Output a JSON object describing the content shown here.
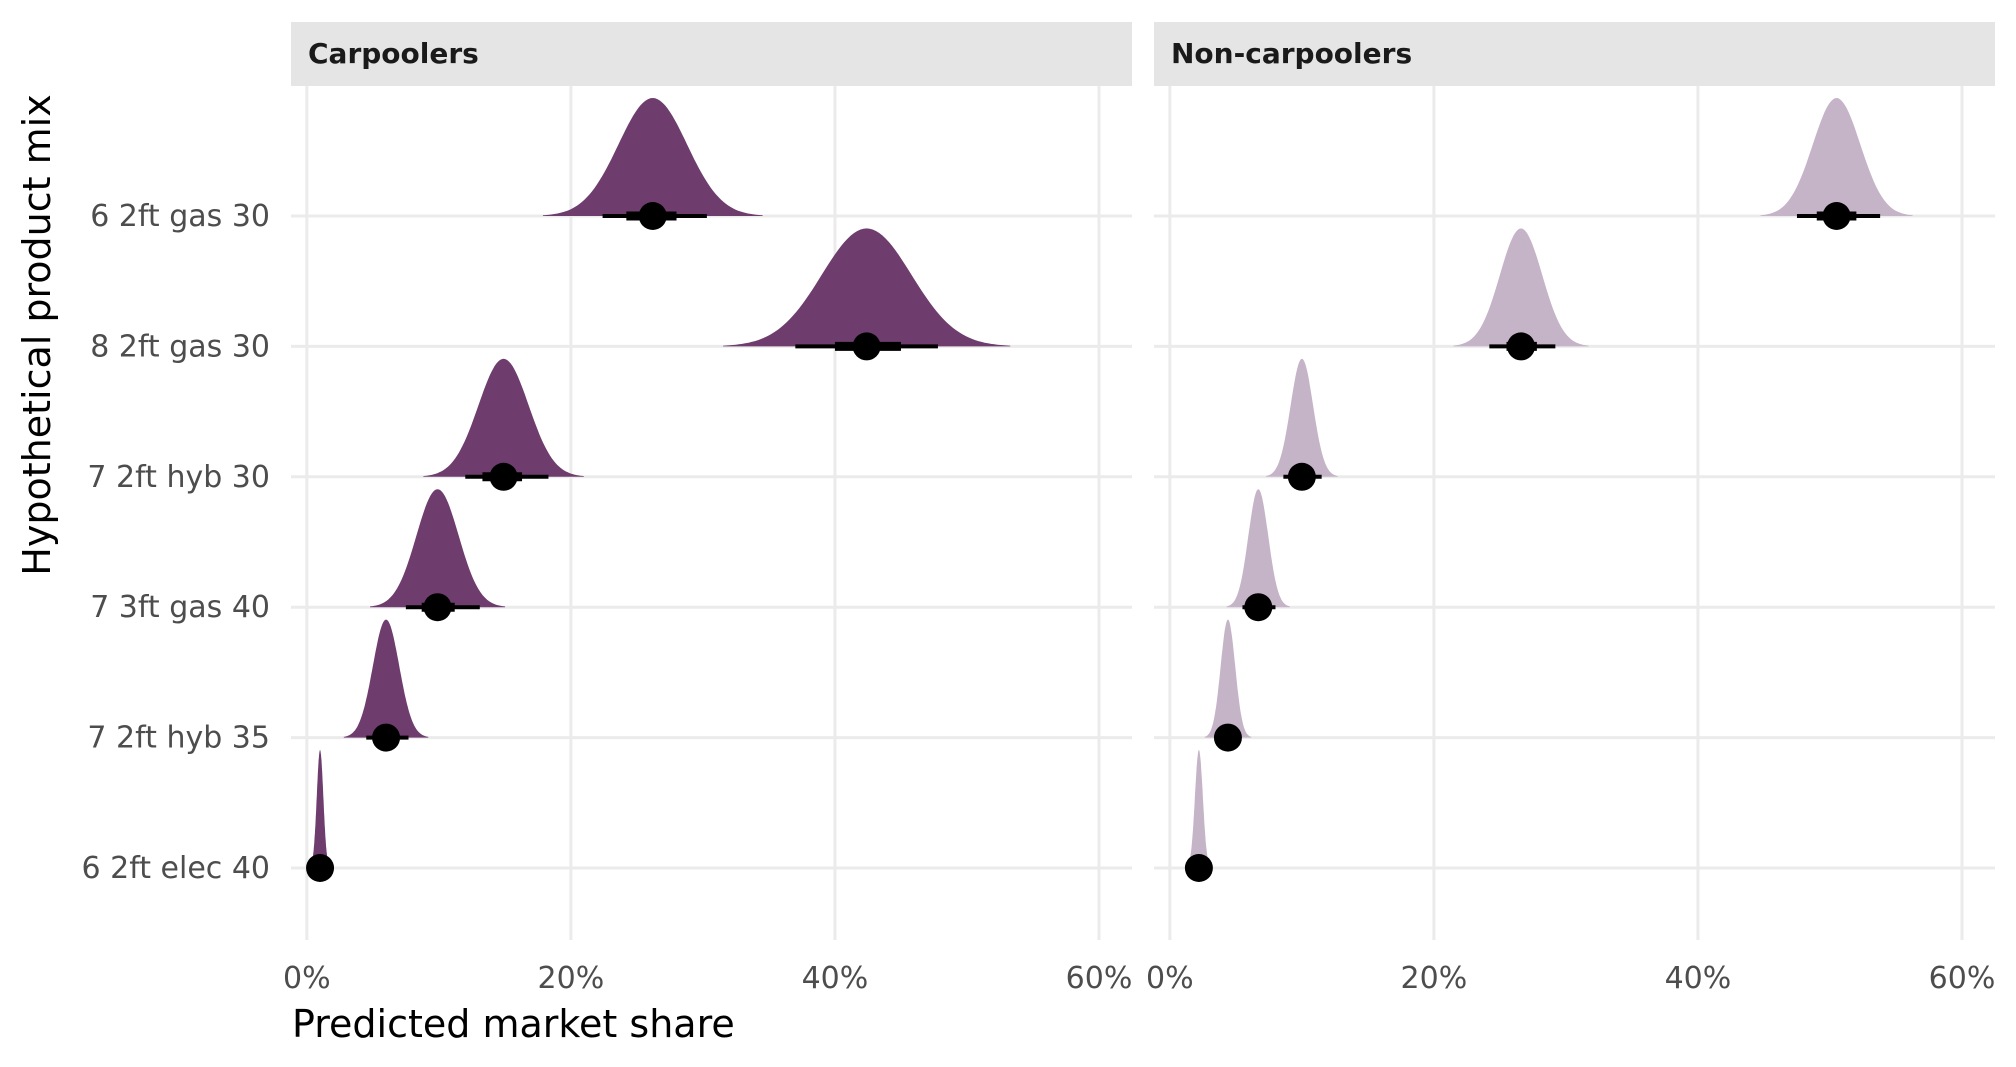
{
  "colors": {
    "carpoolers": "#6E3D6E",
    "non_carpoolers": "#C5B3C7",
    "point": "#000000",
    "grid": "#EBEBEB",
    "strip": "#E5E5E5"
  },
  "chart_data": {
    "type": "halfeye (density ridges with point + interval)",
    "xlabel": "Predicted market share",
    "ylabel": "Hypothetical product mix",
    "xlim": [
      -0.012,
      0.625
    ],
    "x_ticks": [
      0,
      0.2,
      0.4,
      0.6
    ],
    "x_tick_labels": [
      "0%",
      "20%",
      "40%",
      "60%"
    ],
    "categories": [
      "6 2ft gas 30",
      "8 2ft gas 30",
      "7 2ft hyb 30",
      "7 3ft gas 40",
      "7 2ft hyb 35",
      "6 2ft elec 40"
    ],
    "grid": true,
    "panels": [
      {
        "label": "Carpoolers",
        "color_key": "carpoolers",
        "rows": [
          {
            "category": "6 2ft gas 30",
            "mean": 0.262,
            "sd": 0.026,
            "ci66": [
              0.242,
              0.28
            ],
            "ci95": [
              0.224,
              0.303
            ]
          },
          {
            "category": "8 2ft gas 30",
            "mean": 0.424,
            "sd": 0.034,
            "ci66": [
              0.4,
              0.45
            ],
            "ci95": [
              0.37,
              0.478
            ]
          },
          {
            "category": "7 2ft hyb 30",
            "mean": 0.149,
            "sd": 0.019,
            "ci66": [
              0.133,
              0.163
            ],
            "ci95": [
              0.12,
              0.183
            ]
          },
          {
            "category": "7 3ft gas 40",
            "mean": 0.099,
            "sd": 0.016,
            "ci66": [
              0.087,
              0.112
            ],
            "ci95": [
              0.075,
              0.131
            ]
          },
          {
            "category": "7 2ft hyb 35",
            "mean": 0.06,
            "sd": 0.01,
            "ci66": [
              0.052,
              0.068
            ],
            "ci95": [
              0.045,
              0.077
            ]
          },
          {
            "category": "6 2ft elec 40",
            "mean": 0.01,
            "sd": 0.0025,
            "ci66": [
              0.008,
              0.012
            ],
            "ci95": [
              0.007,
              0.014
            ]
          }
        ]
      },
      {
        "label": "Non-carpoolers",
        "color_key": "non_carpoolers",
        "rows": [
          {
            "category": "6 2ft gas 30",
            "mean": 0.505,
            "sd": 0.018,
            "ci66": [
              0.49,
              0.52
            ],
            "ci95": [
              0.475,
              0.538
            ]
          },
          {
            "category": "8 2ft gas 30",
            "mean": 0.266,
            "sd": 0.016,
            "ci66": [
              0.255,
              0.278
            ],
            "ci95": [
              0.242,
              0.292
            ]
          },
          {
            "category": "7 2ft hyb 30",
            "mean": 0.1,
            "sd": 0.0085,
            "ci66": [
              0.093,
              0.107
            ],
            "ci95": [
              0.086,
              0.115
            ]
          },
          {
            "category": "7 3ft gas 40",
            "mean": 0.067,
            "sd": 0.0075,
            "ci66": [
              0.061,
              0.073
            ],
            "ci95": [
              0.055,
              0.08
            ]
          },
          {
            "category": "7 2ft hyb 35",
            "mean": 0.044,
            "sd": 0.0055,
            "ci66": [
              0.04,
              0.048
            ],
            "ci95": [
              0.036,
              0.053
            ]
          },
          {
            "category": "6 2ft elec 40",
            "mean": 0.022,
            "sd": 0.003,
            "ci66": [
              0.02,
              0.024
            ],
            "ci95": [
              0.018,
              0.027
            ]
          }
        ]
      }
    ]
  }
}
